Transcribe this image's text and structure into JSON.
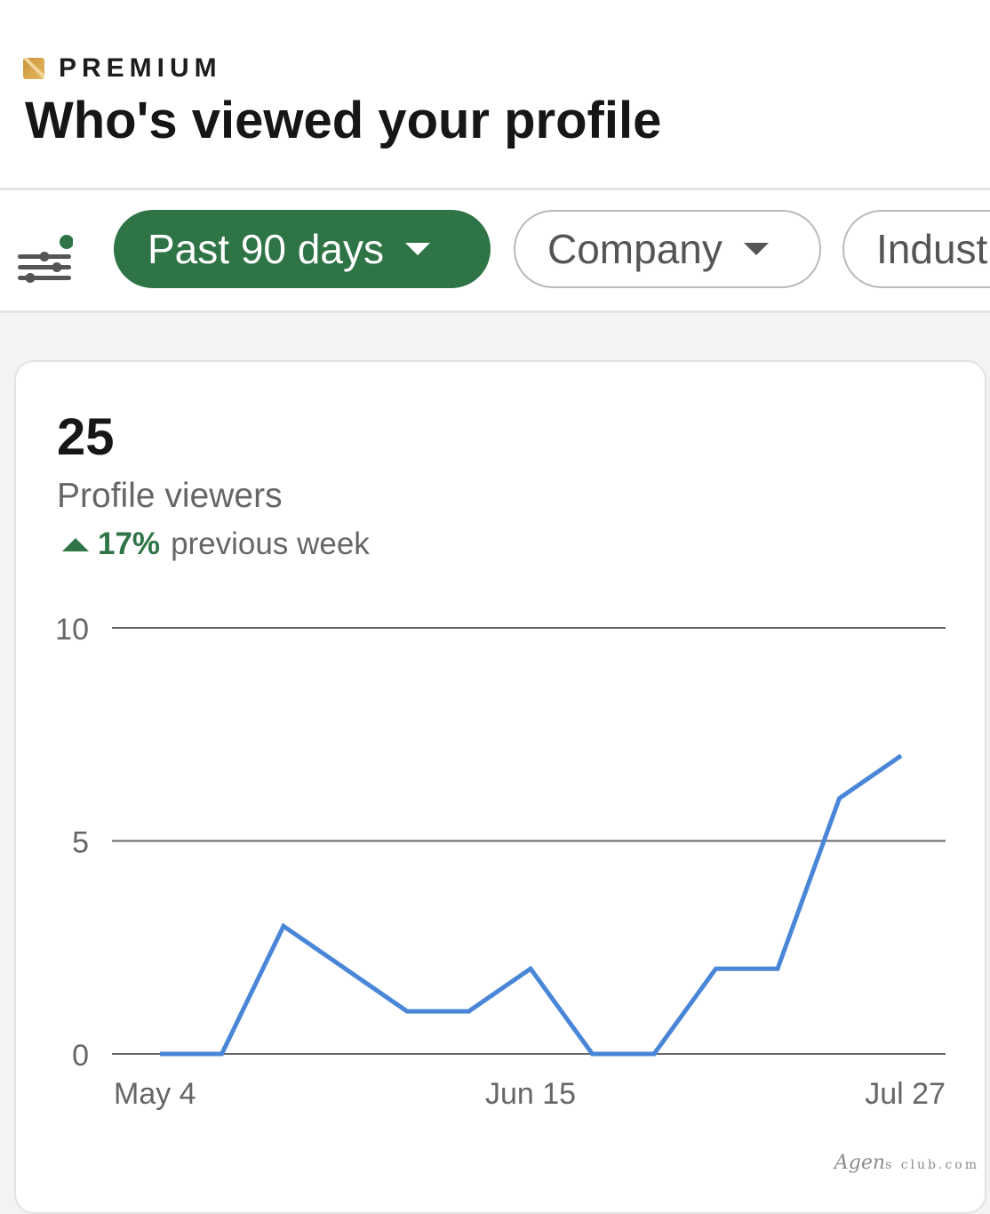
{
  "header": {
    "premium_label": "PREMIUM",
    "title": "Who's viewed your profile"
  },
  "filters": {
    "active_dot_color": "#2e7446",
    "pills": [
      {
        "label": "Past 90 days",
        "selected": true
      },
      {
        "label": "Company",
        "selected": false
      },
      {
        "label": "Indust",
        "selected": false
      }
    ]
  },
  "stats": {
    "value": "25",
    "label": "Profile viewers",
    "change_value": "17%",
    "change_text": "previous week"
  },
  "chart_data": {
    "type": "line",
    "title": "",
    "xlabel": "",
    "ylabel": "",
    "ylim": [
      0,
      10
    ],
    "y_ticks": [
      0,
      5,
      10
    ],
    "x_tick_labels": [
      "May 4",
      "Jun 15",
      "Jul 27"
    ],
    "x_tick_positions": [
      0,
      6,
      12
    ],
    "x": [
      0,
      1,
      2,
      3,
      4,
      5,
      6,
      7,
      8,
      9,
      10,
      11,
      12
    ],
    "values": [
      0,
      0,
      3,
      2,
      1,
      1,
      2,
      0,
      0,
      2,
      2,
      6,
      7
    ],
    "line_color": "#4a86d8",
    "grid": true
  },
  "watermark": {
    "text": "Agen",
    "suffix": "s club.com"
  }
}
